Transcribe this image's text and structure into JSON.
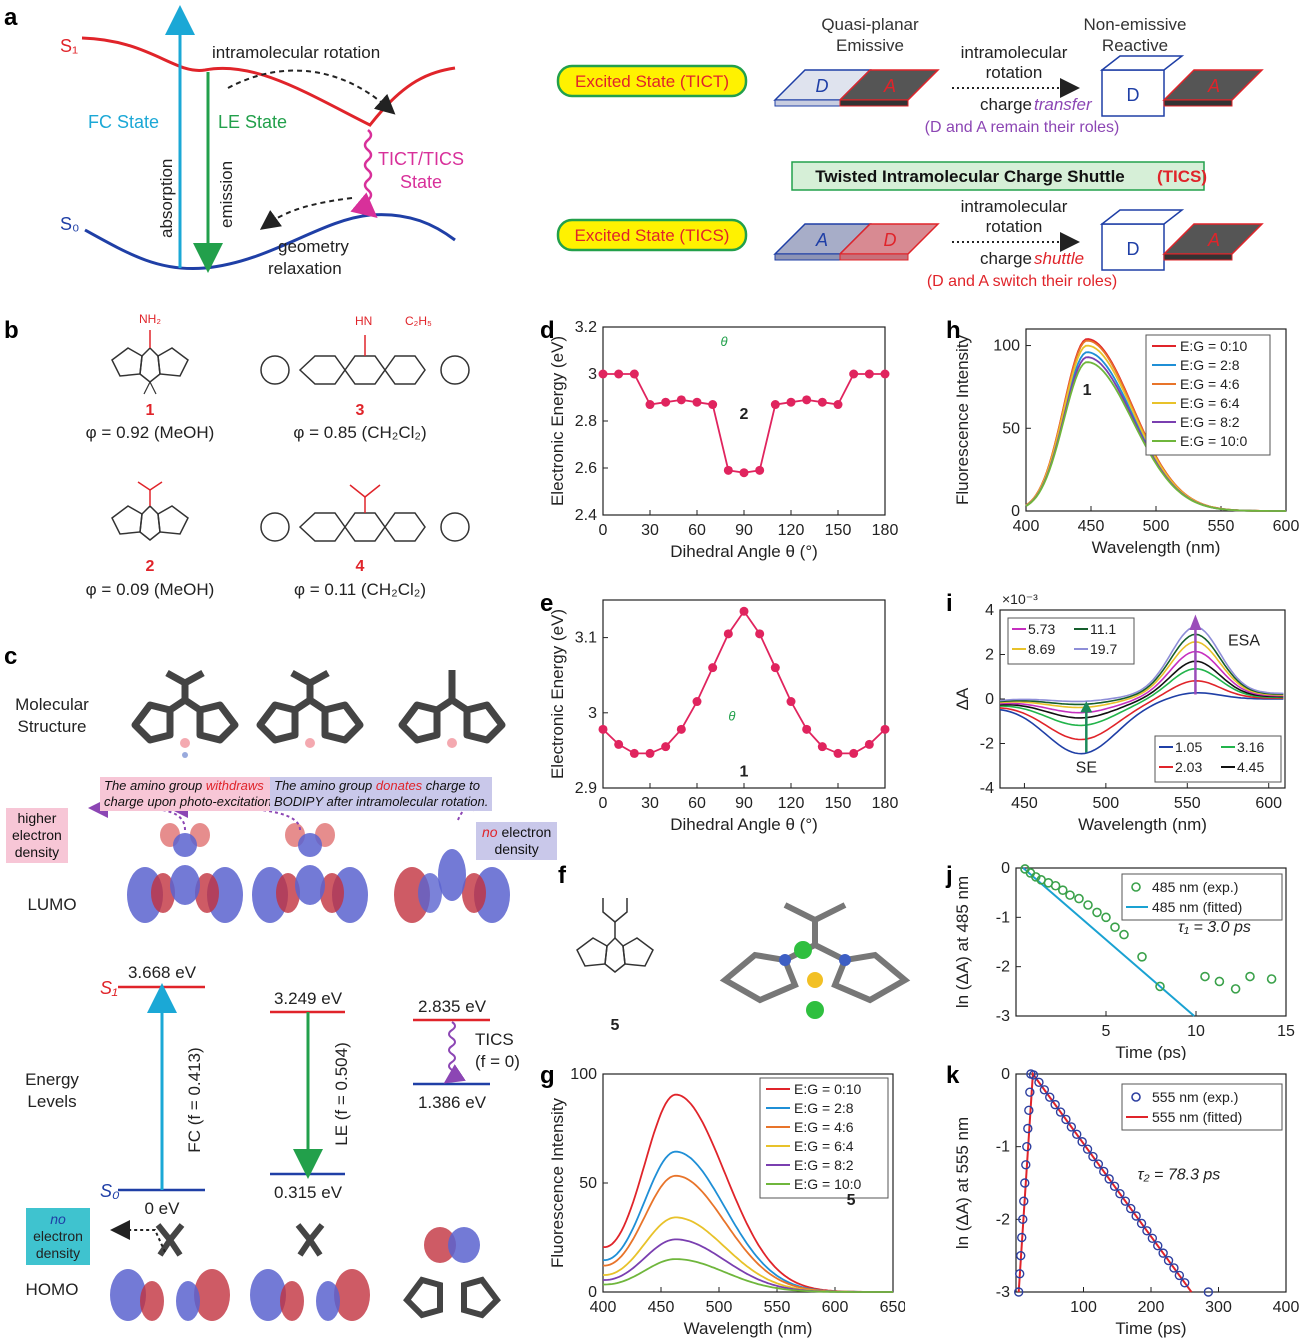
{
  "panel_labels": {
    "a": "a",
    "b": "b",
    "c": "c",
    "d": "d",
    "e": "e",
    "f": "f",
    "g": "g",
    "h": "h",
    "i": "i",
    "j": "j",
    "k": "k"
  },
  "colors": {
    "red": "#e0242a",
    "blue": "#1f3fa6",
    "green": "#22a04b",
    "cyan": "#1ba8d6",
    "magenta": "#d8309a",
    "purple": "#8c46b4",
    "yellowbox": "#fff200"
  },
  "panel_a": {
    "s1": "S₁",
    "s0": "S₀",
    "intramolecular_rotation": "intramolecular rotation",
    "fc_state": "FC State",
    "le_state": "LE State",
    "absorption": "absorption",
    "emission": "emission",
    "tict_tics": "TICT/TICS",
    "state": "State",
    "geometry": "geometry",
    "relaxation": "relaxation",
    "quasi_planar": "Quasi-planar",
    "emissive": "Emissive",
    "non_emissive": "Non-emissive",
    "reactive": "Reactive",
    "excited_tict": "Excited State (TICT)",
    "excited_tics": "Excited State (TICS)",
    "intramolecular": "intramolecular",
    "rotation": "rotation",
    "charge": "charge",
    "transfer": "transfer",
    "shuttle": "shuttle",
    "remain_roles": "(D and A remain their roles)",
    "switch_roles": "(D and A switch their roles)",
    "tics_title": "Twisted Intramolecular Charge Shuttle",
    "tics_abbr": "(TICS)",
    "D": "D",
    "A": "A"
  },
  "panel_b": {
    "c1": {
      "num": "1",
      "phi": "φ = 0.92 (MeOH)",
      "sub": "NH₂"
    },
    "c2": {
      "num": "2",
      "phi": "φ = 0.09 (MeOH)"
    },
    "c3": {
      "num": "3",
      "phi": "φ = 0.85 (CH₂Cl₂)",
      "sub": "HN",
      "sub2": "C₂H₅"
    },
    "c4": {
      "num": "4",
      "phi": "φ = 0.11 (CH₂Cl₂)"
    }
  },
  "panel_c": {
    "molecular": "Molecular",
    "structure": "Structure",
    "withdraws_1": "The amino group",
    "withdraws_w": "withdraws",
    "withdraws_2": "charge upon photo-excitation.",
    "donates_1": "The amino group",
    "donates_w": "donates",
    "donates_2": "charge to",
    "donates_3": "BODIPY after intramolecular rotation.",
    "higher": "higher",
    "electron": "electron",
    "density": "density",
    "no": "no",
    "no_electron": "no electron",
    "lumo": "LUMO",
    "homo": "HOMO",
    "energy": "Energy",
    "levels": "Levels",
    "S1": "S₁",
    "S0": "S₀",
    "e_fc": "3.668 eV",
    "e_le": "3.249 eV",
    "e_tics": "2.835 eV",
    "e_0": "0 eV",
    "e_le0": "0.315 eV",
    "e_tics0": "1.386 eV",
    "fc_label": "FC (f = 0.413)",
    "le_label": "LE (f = 0.504)",
    "tics": "TICS",
    "tics_f": "(f = 0)"
  },
  "chart_data": [
    {
      "id": "d",
      "type": "line",
      "xlabel": "Dihedral Angle θ (°)",
      "ylabel": "Electronic Energy (eV)",
      "xlim": [
        0,
        180
      ],
      "ylim": [
        2.4,
        3.2
      ],
      "xticks": [
        0,
        30,
        60,
        90,
        120,
        150,
        180
      ],
      "yticks": [
        2.4,
        2.6,
        2.8,
        3,
        3.2
      ],
      "compound": "2",
      "theta": "θ",
      "x": [
        0,
        10,
        20,
        30,
        40,
        50,
        60,
        70,
        80,
        90,
        100,
        110,
        120,
        130,
        140,
        150,
        160,
        170,
        180
      ],
      "y": [
        3.0,
        3.0,
        3.0,
        2.87,
        2.88,
        2.89,
        2.88,
        2.87,
        2.59,
        2.58,
        2.59,
        2.87,
        2.88,
        2.89,
        2.88,
        2.87,
        3.0,
        3.0,
        3.0
      ]
    },
    {
      "id": "e",
      "type": "line",
      "xlabel": "Dihedral Angle θ (°)",
      "ylabel": "Electronic Energy (eV)",
      "xlim": [
        0,
        180
      ],
      "ylim": [
        2.9,
        3.15
      ],
      "xticks": [
        0,
        30,
        60,
        90,
        120,
        150,
        180
      ],
      "yticks": [
        2.9,
        3,
        3.1
      ],
      "compound": "1",
      "theta": "θ",
      "x": [
        0,
        10,
        20,
        30,
        40,
        50,
        60,
        70,
        80,
        90,
        100,
        110,
        120,
        130,
        140,
        150,
        160,
        170,
        180
      ],
      "y": [
        2.978,
        2.958,
        2.946,
        2.946,
        2.955,
        2.978,
        3.015,
        3.06,
        3.105,
        3.135,
        3.105,
        3.06,
        3.015,
        2.978,
        2.955,
        2.946,
        2.946,
        2.958,
        2.978
      ]
    },
    {
      "id": "g",
      "type": "line",
      "xlabel": "Wavelength (nm)",
      "ylabel": "Fluorescence Intensity",
      "xlim": [
        400,
        650
      ],
      "ylim": [
        0,
        100
      ],
      "xticks": [
        400,
        450,
        500,
        550,
        600,
        650
      ],
      "yticks": [
        0,
        50,
        100
      ],
      "compound": "5",
      "series": [
        {
          "name": "E:G = 0:10",
          "peak": 90
        },
        {
          "name": "E:G = 2:8",
          "peak": 64
        },
        {
          "name": "E:G = 4:6",
          "peak": 53
        },
        {
          "name": "E:G = 6:4",
          "peak": 34
        },
        {
          "name": "E:G = 8:2",
          "peak": 24
        },
        {
          "name": "E:G = 10:0",
          "peak": 15
        }
      ]
    },
    {
      "id": "h",
      "type": "line",
      "xlabel": "Wavelength (nm)",
      "ylabel": "Fluorescence Intensity",
      "xlim": [
        400,
        600
      ],
      "ylim": [
        0,
        110
      ],
      "xticks": [
        400,
        450,
        500,
        550,
        600
      ],
      "yticks": [
        0,
        50,
        100
      ],
      "compound": "1",
      "series": [
        {
          "name": "E:G = 0:10",
          "peak": 104
        },
        {
          "name": "E:G = 2:8",
          "peak": 96
        },
        {
          "name": "E:G = 4:6",
          "peak": 103
        },
        {
          "name": "E:G = 6:4",
          "peak": 100
        },
        {
          "name": "E:G = 8:2",
          "peak": 93
        },
        {
          "name": "E:G = 10:0",
          "peak": 90
        }
      ]
    },
    {
      "id": "i",
      "type": "line",
      "xlabel": "Wavelength (nm)",
      "ylabel": "ΔA",
      "xlim": [
        435,
        610
      ],
      "ylim": [
        -4,
        4
      ],
      "xticks": [
        450,
        500,
        550,
        600
      ],
      "yticks": [
        -4,
        -2,
        0,
        2,
        4
      ],
      "scale": "×10⁻³",
      "se": "SE",
      "esa": "ESA",
      "series": [
        {
          "name": "1.05"
        },
        {
          "name": "2.03"
        },
        {
          "name": "3.16"
        },
        {
          "name": "4.45"
        },
        {
          "name": "5.73"
        },
        {
          "name": "8.69"
        },
        {
          "name": "11.1"
        },
        {
          "name": "19.7"
        }
      ]
    },
    {
      "id": "j",
      "type": "scatter",
      "xlabel": "Time (ps)",
      "ylabel": "ln (ΔA) at 485 nm",
      "xlim": [
        0,
        15
      ],
      "ylim": [
        -3,
        0
      ],
      "xticks": [
        5,
        10,
        15
      ],
      "yticks": [
        0,
        -1,
        -2,
        -3
      ],
      "tau": "τ₁ = 3.0 ps",
      "series": [
        {
          "name": "485 nm (exp.)",
          "x": [
            0.5,
            0.8,
            1.1,
            1.4,
            1.8,
            2.2,
            2.6,
            3.0,
            3.5,
            4.0,
            4.5,
            5.0,
            5.5,
            6.0,
            7.0,
            8.0,
            10.5,
            11.3,
            12.2,
            13.0,
            14.2
          ],
          "y": [
            -0.02,
            -0.1,
            -0.18,
            -0.24,
            -0.3,
            -0.36,
            -0.45,
            -0.55,
            -0.62,
            -0.75,
            -0.9,
            -1.0,
            -1.2,
            -1.35,
            -1.8,
            -2.4,
            -2.2,
            -2.3,
            -2.45,
            -2.2,
            -2.25
          ]
        },
        {
          "name": "485 nm (fitted)",
          "x": [
            0.4,
            9.9
          ],
          "y": [
            0.0,
            -3.0
          ]
        }
      ]
    },
    {
      "id": "k",
      "type": "scatter",
      "xlabel": "Time (ps)",
      "ylabel": "ln (ΔA) at 555 nm",
      "xlim": [
        0,
        400
      ],
      "ylim": [
        -3,
        0
      ],
      "xticks": [
        100,
        200,
        300,
        400
      ],
      "yticks": [
        0,
        -1,
        -2,
        -3
      ],
      "tau": "τ₂ = 78.3 ps",
      "series": [
        {
          "name": "555 nm (exp.)"
        },
        {
          "name": "555 nm (fitted)"
        }
      ]
    }
  ]
}
